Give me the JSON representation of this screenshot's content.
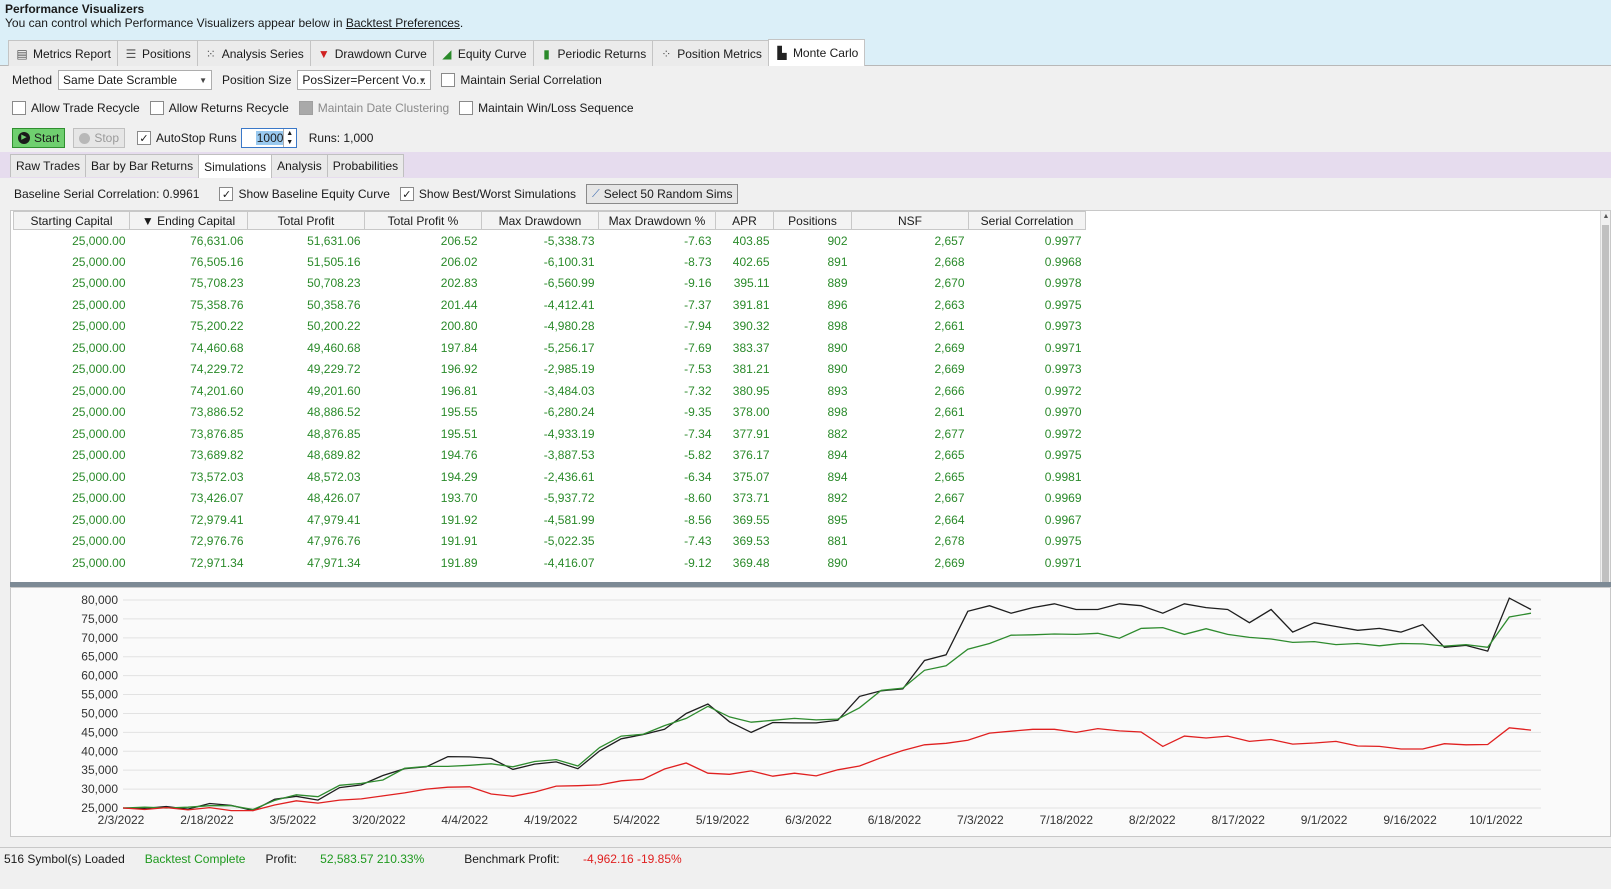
{
  "header": {
    "title": "Performance Visualizers",
    "subtitle_prefix": "You can control which Performance Visualizers appear below in ",
    "subtitle_link": "Backtest Preferences",
    "subtitle_suffix": "."
  },
  "viz_tabs": [
    {
      "label": "Metrics Report",
      "icon": "document-icon"
    },
    {
      "label": "Positions",
      "icon": "list-icon"
    },
    {
      "label": "Analysis Series",
      "icon": "scatter-icon"
    },
    {
      "label": "Drawdown Curve",
      "icon": "drawdown-icon"
    },
    {
      "label": "Equity Curve",
      "icon": "area-chart-icon"
    },
    {
      "label": "Periodic Returns",
      "icon": "bar-chart-icon"
    },
    {
      "label": "Position Metrics",
      "icon": "scatter-dots-icon"
    },
    {
      "label": "Monte Carlo",
      "icon": "histogram-icon"
    }
  ],
  "controls": {
    "method_label": "Method",
    "method_value": "Same Date Scramble",
    "position_size_label": "Position Size",
    "position_size_value": "PosSizer=Percent Vo...",
    "maintain_serial_correlation": "Maintain Serial Correlation",
    "allow_trade_recycle": "Allow Trade Recycle",
    "allow_returns_recycle": "Allow Returns Recycle",
    "maintain_date_clustering": "Maintain Date Clustering",
    "maintain_win_loss_sequence": "Maintain Win/Loss Sequence",
    "start_label": "Start",
    "stop_label": "Stop",
    "autostop_label": "AutoStop Runs",
    "autostop_value": "1000",
    "runs_label": "Runs: 1,000"
  },
  "sub_tabs": [
    "Raw Trades",
    "Bar by Bar Returns",
    "Simulations",
    "Analysis",
    "Probabilities"
  ],
  "sim_toolbar": {
    "baseline_label": "Baseline Serial Correlation: 0.9961",
    "show_baseline": "Show Baseline Equity Curve",
    "show_best_worst": "Show Best/Worst Simulations",
    "select_random": "Select 50 Random Sims"
  },
  "table": {
    "columns": [
      "Starting Capital",
      "Ending Capital",
      "Total Profit",
      "Total Profit %",
      "Max Drawdown",
      "Max Drawdown %",
      "APR",
      "Positions",
      "NSF",
      "Serial Correlation"
    ],
    "sort_indicator": "▼",
    "rows": [
      [
        "25,000.00",
        "76,631.06",
        "51,631.06",
        "206.52",
        "-5,338.73",
        "-7.63",
        "403.85",
        "902",
        "2,657",
        "0.9977"
      ],
      [
        "25,000.00",
        "76,505.16",
        "51,505.16",
        "206.02",
        "-6,100.31",
        "-8.73",
        "402.65",
        "891",
        "2,668",
        "0.9968"
      ],
      [
        "25,000.00",
        "75,708.23",
        "50,708.23",
        "202.83",
        "-6,560.99",
        "-9.16",
        "395.11",
        "889",
        "2,670",
        "0.9978"
      ],
      [
        "25,000.00",
        "75,358.76",
        "50,358.76",
        "201.44",
        "-4,412.41",
        "-7.37",
        "391.81",
        "896",
        "2,663",
        "0.9975"
      ],
      [
        "25,000.00",
        "75,200.22",
        "50,200.22",
        "200.80",
        "-4,980.28",
        "-7.94",
        "390.32",
        "898",
        "2,661",
        "0.9973"
      ],
      [
        "25,000.00",
        "74,460.68",
        "49,460.68",
        "197.84",
        "-5,256.17",
        "-7.69",
        "383.37",
        "890",
        "2,669",
        "0.9971"
      ],
      [
        "25,000.00",
        "74,229.72",
        "49,229.72",
        "196.92",
        "-2,985.19",
        "-7.53",
        "381.21",
        "890",
        "2,669",
        "0.9973"
      ],
      [
        "25,000.00",
        "74,201.60",
        "49,201.60",
        "196.81",
        "-3,484.03",
        "-7.32",
        "380.95",
        "893",
        "2,666",
        "0.9972"
      ],
      [
        "25,000.00",
        "73,886.52",
        "48,886.52",
        "195.55",
        "-6,280.24",
        "-9.35",
        "378.00",
        "898",
        "2,661",
        "0.9970"
      ],
      [
        "25,000.00",
        "73,876.85",
        "48,876.85",
        "195.51",
        "-4,933.19",
        "-7.34",
        "377.91",
        "882",
        "2,677",
        "0.9972"
      ],
      [
        "25,000.00",
        "73,689.82",
        "48,689.82",
        "194.76",
        "-3,887.53",
        "-5.82",
        "376.17",
        "894",
        "2,665",
        "0.9975"
      ],
      [
        "25,000.00",
        "73,572.03",
        "48,572.03",
        "194.29",
        "-2,436.61",
        "-6.34",
        "375.07",
        "894",
        "2,665",
        "0.9981"
      ],
      [
        "25,000.00",
        "73,426.07",
        "48,426.07",
        "193.70",
        "-5,937.72",
        "-8.60",
        "373.71",
        "892",
        "2,667",
        "0.9969"
      ],
      [
        "25,000.00",
        "72,979.41",
        "47,979.41",
        "191.92",
        "-4,581.99",
        "-8.56",
        "369.55",
        "895",
        "2,664",
        "0.9967"
      ],
      [
        "25,000.00",
        "72,976.76",
        "47,976.76",
        "191.91",
        "-5,022.35",
        "-7.43",
        "369.53",
        "881",
        "2,678",
        "0.9975"
      ],
      [
        "25,000.00",
        "72,971.34",
        "47,971.34",
        "191.89",
        "-4,416.07",
        "-9.12",
        "369.48",
        "890",
        "2,669",
        "0.9971"
      ]
    ]
  },
  "chart_data": {
    "type": "line",
    "y_ticks": [
      "80,000",
      "75,000",
      "70,000",
      "65,000",
      "60,000",
      "55,000",
      "50,000",
      "45,000",
      "40,000",
      "35,000",
      "30,000",
      "25,000"
    ],
    "x_ticks": [
      "2/3/2022",
      "2/18/2022",
      "3/5/2022",
      "3/20/2022",
      "4/4/2022",
      "4/19/2022",
      "5/4/2022",
      "5/19/2022",
      "6/3/2022",
      "6/18/2022",
      "7/3/2022",
      "7/18/2022",
      "8/2/2022",
      "8/17/2022",
      "9/1/2022",
      "9/16/2022",
      "10/1/2022"
    ],
    "ylim": [
      25000,
      80000
    ],
    "series": [
      {
        "color": "#1e1e1e",
        "values": [
          25000,
          24900,
          25400,
          24700,
          26200,
          25700,
          24300,
          27300,
          28100,
          27100,
          30400,
          31100,
          33600,
          35400,
          35900,
          38600,
          38500,
          38100,
          35200,
          36600,
          37200,
          35400,
          40100,
          43300,
          44400,
          45800,
          50000,
          52500,
          47800,
          45000,
          47600,
          47500,
          47500,
          48200,
          54500,
          56000,
          56500,
          64000,
          65500,
          77000,
          78500,
          76500,
          78000,
          79000,
          77500,
          77500,
          79000,
          78500,
          76500,
          79000,
          78000,
          77500,
          74000,
          77500,
          71500,
          74000,
          73000,
          72000,
          72500,
          71500,
          73500,
          67500,
          68000,
          66500,
          80500,
          77500
        ]
      },
      {
        "color": "#2e8b2e",
        "values": [
          25000,
          25200,
          25000,
          25200,
          25600,
          25600,
          24600,
          27000,
          28500,
          28000,
          31000,
          31500,
          32400,
          35500,
          36000,
          36000,
          36300,
          36700,
          35900,
          37300,
          37800,
          36100,
          41000,
          44000,
          44500,
          46800,
          48700,
          51900,
          49100,
          47700,
          48200,
          48700,
          48300,
          48500,
          51500,
          56100,
          56700,
          61400,
          62600,
          67000,
          68500,
          70700,
          70800,
          71000,
          70900,
          71200,
          69900,
          72500,
          72700,
          70900,
          72400,
          70900,
          70100,
          69700,
          68800,
          69000,
          68200,
          68500,
          67900,
          68500,
          68400,
          67800,
          68200,
          67500,
          75500,
          76500
        ]
      },
      {
        "color": "#e02020",
        "values": [
          25000,
          24600,
          25100,
          24500,
          25100,
          24300,
          24300,
          25800,
          26900,
          26300,
          27100,
          27400,
          28200,
          29000,
          30000,
          30500,
          30600,
          28700,
          28100,
          29200,
          30800,
          30900,
          31100,
          32200,
          32600,
          35300,
          36900,
          34200,
          33900,
          34800,
          33400,
          34200,
          33500,
          35100,
          36100,
          38300,
          40200,
          41700,
          42100,
          42900,
          44800,
          45300,
          45800,
          45800,
          45000,
          46000,
          45400,
          45100,
          41300,
          44000,
          43500,
          44000,
          42600,
          43100,
          41900,
          42200,
          42600,
          41400,
          41300,
          40600,
          40600,
          42000,
          41700,
          41800,
          46200,
          45600
        ]
      }
    ]
  },
  "status": {
    "symbols": "516 Symbol(s) Loaded",
    "backtest": "Backtest Complete",
    "profit_label": "Profit: ",
    "profit_value": "52,583.57 210.33%",
    "benchmark_label": "Benchmark Profit: ",
    "benchmark_value": "-4,962.16 -19.85%",
    "colors": {
      "green": "#1f9a1f",
      "red": "#e02020"
    }
  }
}
